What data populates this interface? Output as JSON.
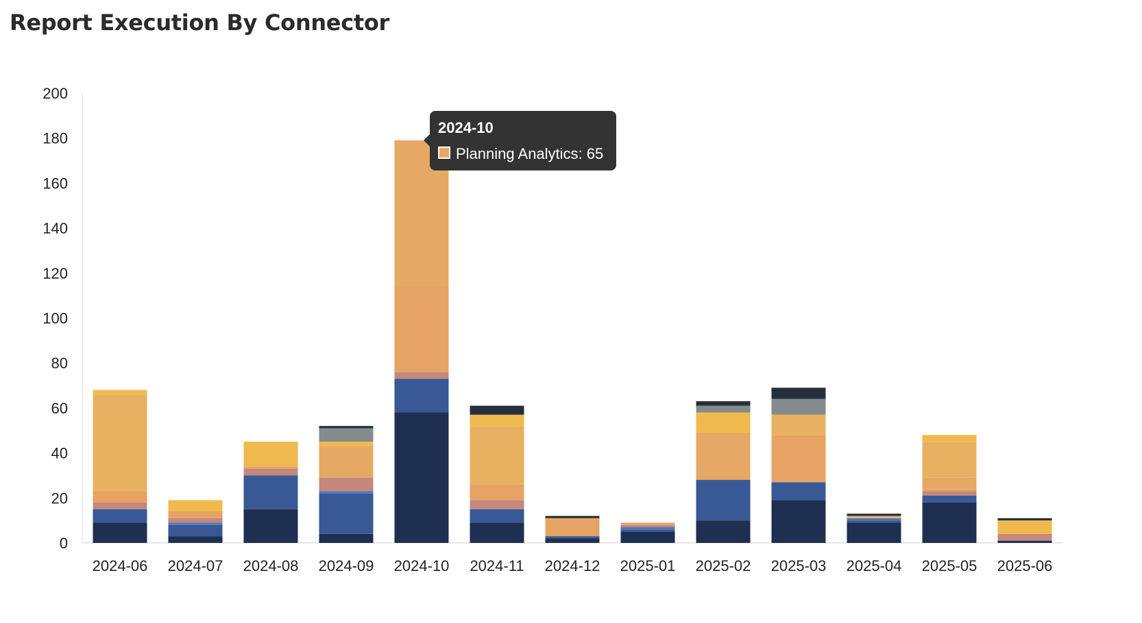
{
  "title": "Report Execution By Connector",
  "chart_data": {
    "type": "bar",
    "stacked": true,
    "title": "Report Execution By Connector",
    "xlabel": "",
    "ylabel": "",
    "ylim": [
      0,
      200
    ],
    "yticks": [
      0,
      20,
      40,
      60,
      80,
      100,
      120,
      140,
      160,
      180,
      200
    ],
    "grid": false,
    "categories": [
      "2024-06",
      "2024-07",
      "2024-08",
      "2024-09",
      "2024-10",
      "2024-11",
      "2024-12",
      "2025-01",
      "2025-02",
      "2025-03",
      "2025-04",
      "2025-05",
      "2025-06"
    ],
    "series": [
      {
        "color": "#1f2f52",
        "values": [
          9,
          3,
          15,
          4,
          58,
          9,
          2,
          5,
          10,
          19,
          9,
          18,
          1
        ]
      },
      {
        "color": "#385995",
        "values": [
          6,
          5,
          15,
          18,
          15,
          6,
          1,
          1,
          18,
          8,
          1,
          3,
          0
        ]
      },
      {
        "color": "#5278b6",
        "values": [
          0,
          1,
          0,
          1,
          0,
          0,
          0,
          1,
          0,
          0,
          1,
          0,
          0
        ]
      },
      {
        "color": "#c4887c",
        "values": [
          3,
          2,
          3,
          6,
          3,
          4,
          0,
          1,
          0,
          0,
          0,
          2,
          3
        ]
      },
      {
        "color": "#e6a364",
        "values": [
          5,
          3,
          1,
          0,
          38,
          7,
          8,
          1,
          2,
          21,
          0,
          1,
          0
        ]
      },
      {
        "name": "Planning Analytics",
        "color": "#e5a965",
        "values": [
          0,
          0,
          0,
          14,
          65,
          0,
          0,
          0,
          19,
          0,
          0,
          5,
          0
        ]
      },
      {
        "color": "#e8b162",
        "values": [
          43,
          0,
          0,
          0,
          0,
          26,
          0,
          0,
          0,
          9,
          1,
          16,
          0
        ]
      },
      {
        "color": "#f2a346",
        "values": [
          0,
          0,
          0,
          0,
          0,
          0,
          0,
          0,
          0,
          0,
          0,
          0,
          0
        ]
      },
      {
        "color": "#f0b94d",
        "values": [
          2,
          5,
          11,
          2,
          0,
          5,
          0,
          0,
          9,
          0,
          0,
          3,
          6
        ]
      },
      {
        "color": "#828b8e",
        "values": [
          0,
          0,
          0,
          6,
          0,
          0,
          0,
          0,
          3,
          7,
          0,
          0,
          0
        ]
      },
      {
        "color": "#26303c",
        "values": [
          0,
          0,
          0,
          1,
          0,
          4,
          1,
          0,
          2,
          5,
          1,
          0,
          1
        ]
      }
    ],
    "tooltip": {
      "category": "2024-10",
      "label": "Planning Analytics: 65",
      "swatch_color": "#e5a965"
    }
  }
}
